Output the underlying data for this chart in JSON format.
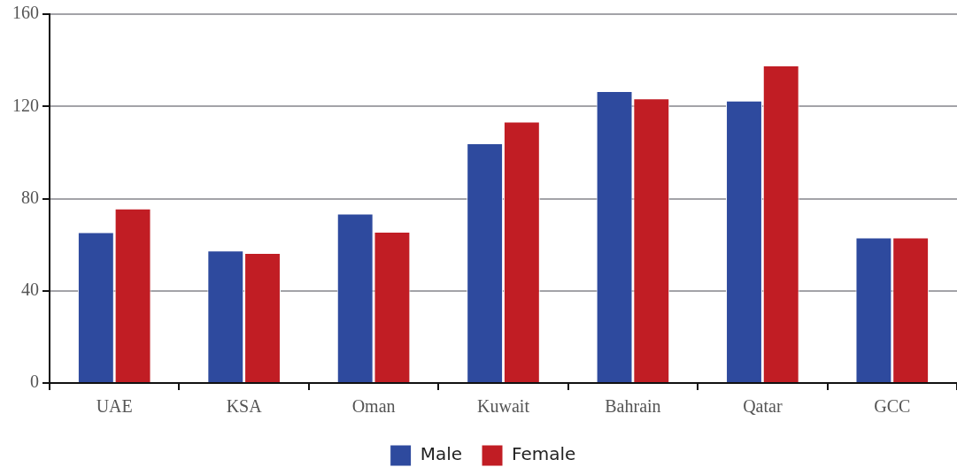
{
  "chart_data": {
    "type": "bar",
    "categories": [
      "UAE",
      "KSA",
      "Oman",
      "Kuwait",
      "Bahrain",
      "Qatar",
      "GCC"
    ],
    "series": [
      {
        "name": "Male",
        "color": "#2e4a9e",
        "values": [
          65.4,
          57.5,
          73.5,
          104,
          126.6,
          122.5,
          63.1
        ]
      },
      {
        "name": "Female",
        "color": "#c11d24",
        "values": [
          75.7,
          56.4,
          65.6,
          113.4,
          123.5,
          137.7,
          63.1
        ]
      }
    ],
    "ylim": [
      0,
      160
    ],
    "yticks": [
      0,
      40,
      80,
      120,
      160
    ],
    "grid": "y",
    "legend": "bottom"
  }
}
